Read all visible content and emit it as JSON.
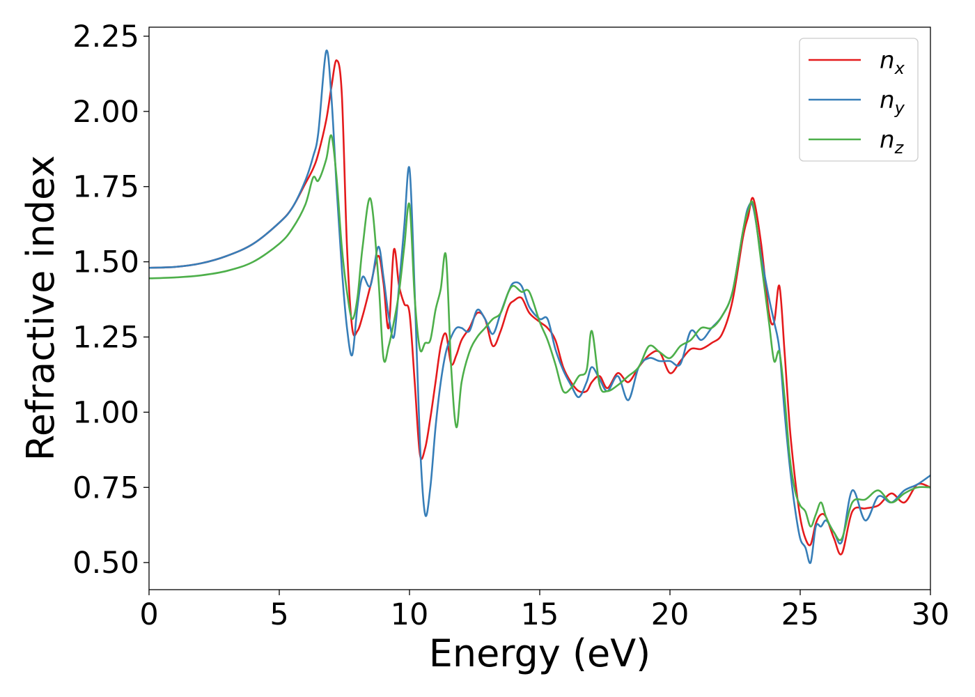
{
  "chart_data": {
    "type": "line",
    "xlabel": "Energy (eV)",
    "ylabel": "Refractive index",
    "xlim": [
      0,
      30
    ],
    "ylim": [
      0.41,
      2.28
    ],
    "xticks": [
      0,
      5,
      10,
      15,
      20,
      25,
      30
    ],
    "xtick_labels": [
      "0",
      "5",
      "10",
      "15",
      "20",
      "25",
      "30"
    ],
    "yticks": [
      0.5,
      0.75,
      1.0,
      1.25,
      1.5,
      1.75,
      2.0,
      2.25
    ],
    "ytick_labels": [
      "0.50",
      "0.75",
      "1.00",
      "1.25",
      "1.50",
      "1.75",
      "2.00",
      "2.25"
    ],
    "grid": false,
    "legend_position": "top-right",
    "series": [
      {
        "name": "n",
        "subscript": "x",
        "color": "#e41a1c",
        "x": [
          0,
          1,
          2,
          3,
          4,
          5,
          5.5,
          6,
          6.3,
          6.5,
          6.8,
          7.0,
          7.2,
          7.4,
          7.6,
          7.8,
          8.0,
          8.2,
          8.5,
          8.8,
          9.0,
          9.2,
          9.4,
          9.6,
          9.8,
          10.0,
          10.2,
          10.4,
          10.6,
          10.8,
          11.0,
          11.2,
          11.4,
          11.6,
          11.8,
          12.0,
          12.3,
          12.6,
          12.9,
          13.2,
          13.5,
          13.8,
          14.0,
          14.3,
          14.6,
          15.0,
          15.3,
          15.6,
          15.9,
          16.2,
          16.5,
          16.8,
          17.0,
          17.3,
          17.6,
          18.0,
          18.4,
          18.8,
          19.2,
          19.6,
          20.0,
          20.4,
          20.8,
          21.2,
          21.6,
          22.0,
          22.4,
          22.8,
          23.0,
          23.2,
          23.5,
          23.8,
          24.0,
          24.2,
          24.4,
          24.6,
          24.8,
          25.0,
          25.2,
          25.4,
          25.6,
          25.8,
          26.0,
          26.3,
          26.6,
          27.0,
          27.5,
          28.0,
          28.5,
          29.0,
          29.5,
          30.0
        ],
        "y": [
          1.48,
          1.483,
          1.495,
          1.52,
          1.56,
          1.63,
          1.68,
          1.76,
          1.81,
          1.86,
          1.97,
          2.08,
          2.17,
          2.06,
          1.55,
          1.28,
          1.27,
          1.32,
          1.42,
          1.52,
          1.43,
          1.28,
          1.54,
          1.42,
          1.36,
          1.33,
          1.1,
          0.86,
          0.88,
          0.98,
          1.1,
          1.22,
          1.26,
          1.16,
          1.19,
          1.24,
          1.28,
          1.33,
          1.31,
          1.22,
          1.27,
          1.35,
          1.37,
          1.38,
          1.33,
          1.3,
          1.28,
          1.24,
          1.15,
          1.1,
          1.07,
          1.07,
          1.1,
          1.12,
          1.08,
          1.13,
          1.1,
          1.15,
          1.19,
          1.2,
          1.13,
          1.17,
          1.21,
          1.21,
          1.23,
          1.26,
          1.37,
          1.58,
          1.65,
          1.71,
          1.56,
          1.33,
          1.3,
          1.42,
          1.2,
          0.95,
          0.78,
          0.65,
          0.58,
          0.56,
          0.63,
          0.66,
          0.65,
          0.58,
          0.53,
          0.67,
          0.68,
          0.69,
          0.73,
          0.7,
          0.76,
          0.75
        ]
      },
      {
        "name": "n",
        "subscript": "y",
        "color": "#377eb8",
        "x": [
          0,
          1,
          2,
          3,
          4,
          5,
          5.5,
          6,
          6.3,
          6.5,
          6.8,
          7.0,
          7.2,
          7.4,
          7.6,
          7.8,
          8.0,
          8.2,
          8.5,
          8.8,
          9.0,
          9.2,
          9.4,
          9.6,
          9.8,
          10.0,
          10.2,
          10.4,
          10.6,
          10.8,
          11.0,
          11.2,
          11.4,
          11.6,
          11.8,
          12.0,
          12.3,
          12.6,
          12.9,
          13.2,
          13.5,
          13.8,
          14.0,
          14.3,
          14.6,
          15.0,
          15.3,
          15.6,
          15.9,
          16.2,
          16.5,
          16.8,
          17.0,
          17.3,
          17.6,
          18.0,
          18.4,
          18.8,
          19.2,
          19.6,
          20.0,
          20.4,
          20.8,
          21.2,
          21.6,
          22.0,
          22.4,
          22.8,
          23.0,
          23.2,
          23.5,
          23.8,
          24.0,
          24.2,
          24.4,
          24.6,
          24.8,
          25.0,
          25.2,
          25.4,
          25.6,
          25.8,
          26.0,
          26.3,
          26.6,
          27.0,
          27.5,
          28.0,
          28.5,
          29.0,
          29.5,
          30.0
        ],
        "y": [
          1.48,
          1.483,
          1.495,
          1.52,
          1.56,
          1.63,
          1.68,
          1.77,
          1.85,
          1.93,
          2.2,
          2.05,
          1.75,
          1.48,
          1.28,
          1.19,
          1.35,
          1.45,
          1.42,
          1.55,
          1.45,
          1.32,
          1.25,
          1.42,
          1.62,
          1.81,
          1.4,
          0.9,
          0.66,
          0.75,
          0.95,
          1.1,
          1.2,
          1.25,
          1.28,
          1.28,
          1.27,
          1.34,
          1.31,
          1.26,
          1.33,
          1.4,
          1.43,
          1.42,
          1.35,
          1.31,
          1.31,
          1.21,
          1.14,
          1.09,
          1.05,
          1.1,
          1.15,
          1.11,
          1.07,
          1.12,
          1.04,
          1.15,
          1.18,
          1.17,
          1.17,
          1.16,
          1.27,
          1.24,
          1.28,
          1.32,
          1.4,
          1.6,
          1.68,
          1.68,
          1.52,
          1.38,
          1.3,
          1.21,
          1.0,
          0.82,
          0.68,
          0.58,
          0.55,
          0.5,
          0.62,
          0.62,
          0.64,
          0.6,
          0.57,
          0.74,
          0.64,
          0.72,
          0.7,
          0.74,
          0.76,
          0.79
        ]
      },
      {
        "name": "n",
        "subscript": "z",
        "color": "#4daf4a",
        "x": [
          0,
          1,
          2,
          3,
          4,
          5,
          5.5,
          6,
          6.3,
          6.5,
          6.8,
          7.0,
          7.2,
          7.4,
          7.6,
          7.8,
          8.0,
          8.2,
          8.5,
          8.8,
          9.0,
          9.2,
          9.4,
          9.6,
          9.8,
          10.0,
          10.2,
          10.4,
          10.6,
          10.8,
          11.0,
          11.2,
          11.4,
          11.6,
          11.8,
          12.0,
          12.3,
          12.6,
          12.9,
          13.2,
          13.5,
          13.8,
          14.0,
          14.3,
          14.6,
          15.0,
          15.3,
          15.6,
          15.9,
          16.2,
          16.5,
          16.8,
          17.0,
          17.3,
          17.6,
          18.0,
          18.4,
          18.8,
          19.2,
          19.6,
          20.0,
          20.4,
          20.8,
          21.2,
          21.6,
          22.0,
          22.4,
          22.8,
          23.0,
          23.2,
          23.5,
          23.8,
          24.0,
          24.2,
          24.4,
          24.6,
          24.8,
          25.0,
          25.2,
          25.4,
          25.6,
          25.8,
          26.0,
          26.3,
          26.6,
          27.0,
          27.5,
          28.0,
          28.5,
          29.0,
          29.5,
          30.0
        ],
        "y": [
          1.445,
          1.448,
          1.455,
          1.47,
          1.5,
          1.56,
          1.61,
          1.69,
          1.78,
          1.77,
          1.84,
          1.92,
          1.78,
          1.55,
          1.4,
          1.31,
          1.38,
          1.55,
          1.71,
          1.45,
          1.18,
          1.22,
          1.3,
          1.4,
          1.55,
          1.69,
          1.38,
          1.21,
          1.23,
          1.24,
          1.34,
          1.41,
          1.52,
          1.15,
          0.95,
          1.1,
          1.2,
          1.25,
          1.28,
          1.31,
          1.33,
          1.4,
          1.42,
          1.4,
          1.4,
          1.3,
          1.24,
          1.16,
          1.07,
          1.08,
          1.12,
          1.14,
          1.27,
          1.09,
          1.07,
          1.09,
          1.12,
          1.15,
          1.22,
          1.2,
          1.18,
          1.22,
          1.24,
          1.28,
          1.28,
          1.32,
          1.4,
          1.6,
          1.67,
          1.69,
          1.5,
          1.3,
          1.17,
          1.2,
          1.05,
          0.85,
          0.74,
          0.69,
          0.67,
          0.62,
          0.66,
          0.7,
          0.65,
          0.6,
          0.58,
          0.7,
          0.71,
          0.74,
          0.7,
          0.73,
          0.75,
          0.75
        ]
      }
    ]
  }
}
